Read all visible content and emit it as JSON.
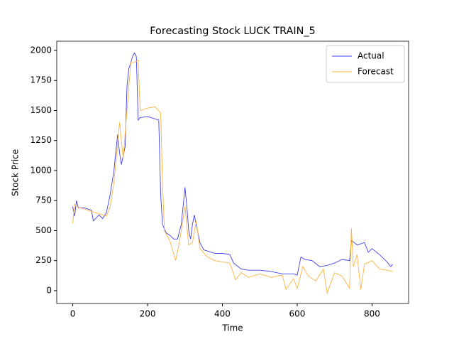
{
  "chart_data": {
    "type": "line",
    "title": "Forecasting Stock LUCK TRAIN_5",
    "xlabel": "Time",
    "ylabel": "Stock Price",
    "xlim": [
      -42.75,
      897.75
    ],
    "xticks": [
      0,
      200,
      400,
      600,
      800
    ],
    "ylim": [
      -107,
      2077
    ],
    "yticks": [
      0,
      250,
      500,
      750,
      1000,
      1250,
      1500,
      1750,
      2000
    ],
    "legend": "upper right",
    "series": [
      {
        "name": "Actual",
        "color": "#4040ee",
        "x": [
          0,
          5,
          10,
          15,
          30,
          50,
          55,
          70,
          80,
          90,
          100,
          110,
          120,
          125,
          130,
          140,
          145,
          150,
          160,
          165,
          170,
          175,
          180,
          200,
          220,
          230,
          235,
          240,
          250,
          260,
          270,
          280,
          290,
          295,
          300,
          305,
          310,
          315,
          320,
          325,
          330,
          340,
          350,
          360,
          380,
          400,
          420,
          430,
          450,
          470,
          500,
          530,
          560,
          590,
          600,
          610,
          620,
          640,
          660,
          680,
          700,
          720,
          740,
          745,
          760,
          780,
          790,
          800,
          820,
          840,
          850,
          855
        ],
        "values": [
          700,
          620,
          750,
          690,
          690,
          670,
          580,
          630,
          600,
          650,
          800,
          1000,
          1300,
          1150,
          1050,
          1200,
          1700,
          1850,
          1950,
          1980,
          1950,
          1420,
          1440,
          1450,
          1430,
          1420,
          800,
          550,
          480,
          460,
          430,
          430,
          550,
          700,
          860,
          700,
          500,
          430,
          550,
          630,
          550,
          400,
          340,
          330,
          310,
          310,
          300,
          230,
          180,
          170,
          170,
          160,
          140,
          140,
          130,
          280,
          260,
          250,
          200,
          210,
          230,
          260,
          250,
          420,
          380,
          400,
          320,
          350,
          300,
          240,
          200,
          220
        ]
      },
      {
        "name": "Forecast",
        "color": "#fbb440",
        "x": [
          0,
          5,
          10,
          30,
          60,
          90,
          100,
          110,
          125,
          135,
          145,
          155,
          165,
          175,
          180,
          200,
          220,
          235,
          240,
          245,
          260,
          275,
          285,
          300,
          310,
          320,
          330,
          340,
          360,
          380,
          400,
          420,
          435,
          450,
          470,
          500,
          530,
          560,
          570,
          590,
          600,
          615,
          630,
          650,
          670,
          680,
          700,
          720,
          740,
          745,
          750,
          760,
          770,
          780,
          800,
          820,
          840,
          855
        ],
        "values": [
          560,
          720,
          700,
          680,
          650,
          620,
          700,
          900,
          1400,
          1100,
          1500,
          1900,
          1900,
          1920,
          1500,
          1520,
          1530,
          1480,
          900,
          500,
          410,
          250,
          400,
          700,
          380,
          400,
          580,
          350,
          280,
          250,
          240,
          230,
          90,
          150,
          110,
          140,
          110,
          130,
          10,
          100,
          20,
          200,
          120,
          80,
          180,
          -20,
          150,
          120,
          20,
          520,
          200,
          300,
          10,
          220,
          250,
          180,
          170,
          160
        ]
      }
    ]
  }
}
